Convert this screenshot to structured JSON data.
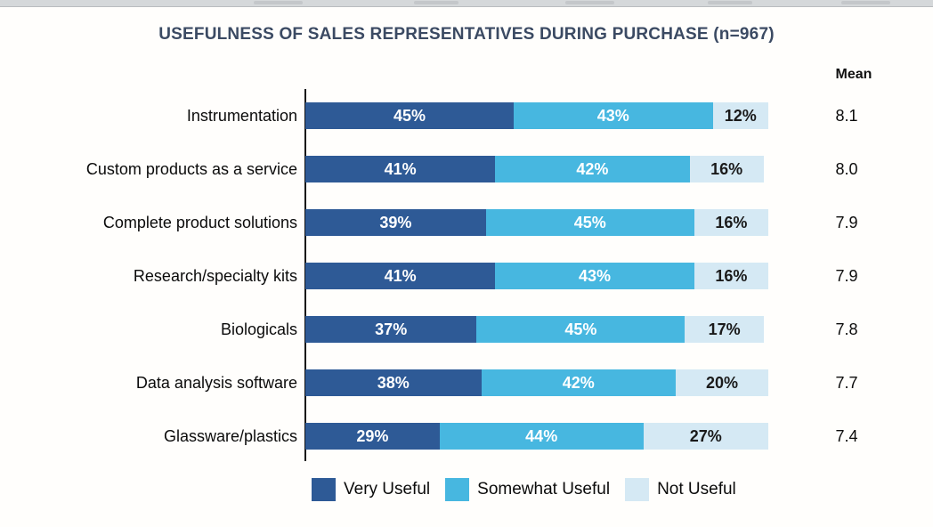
{
  "title": "USEFULNESS OF SALES REPRESENTATIVES DURING PURCHASE (n=967)",
  "mean_header": "Mean",
  "colors": {
    "title_text": "#3b4a63",
    "very_useful": "#2e5a96",
    "somewhat_useful": "#47b7e0",
    "not_useful": "#d5e9f4",
    "label_on_dark": "#ffffff",
    "label_on_light": "#1a1a1a"
  },
  "chart_data": {
    "type": "bar",
    "stacked": true,
    "orientation": "horizontal",
    "title": "USEFULNESS OF SALES REPRESENTATIVES DURING PURCHASE (n=967)",
    "xlabel": "",
    "ylabel": "",
    "xlim": [
      0,
      100
    ],
    "value_suffix": "%",
    "grid": false,
    "legend_position": "bottom",
    "categories": [
      "Instrumentation",
      "Custom products as a service",
      "Complete product solutions",
      "Research/specialty kits",
      "Biologicals",
      "Data analysis software",
      "Glassware/plastics"
    ],
    "series": [
      {
        "name": "Very Useful",
        "color": "#2e5a96",
        "text_color": "#ffffff",
        "values": [
          45,
          41,
          39,
          41,
          37,
          38,
          29
        ]
      },
      {
        "name": "Somewhat Useful",
        "color": "#47b7e0",
        "text_color": "#ffffff",
        "values": [
          43,
          42,
          45,
          43,
          45,
          42,
          44
        ]
      },
      {
        "name": "Not Useful",
        "color": "#d5e9f4",
        "text_color": "#1a1a1a",
        "values": [
          12,
          16,
          16,
          16,
          17,
          20,
          27
        ]
      }
    ],
    "mean_column_header": "Mean",
    "means": [
      "8.1",
      "8.0",
      "7.9",
      "7.9",
      "7.8",
      "7.7",
      "7.4"
    ]
  }
}
